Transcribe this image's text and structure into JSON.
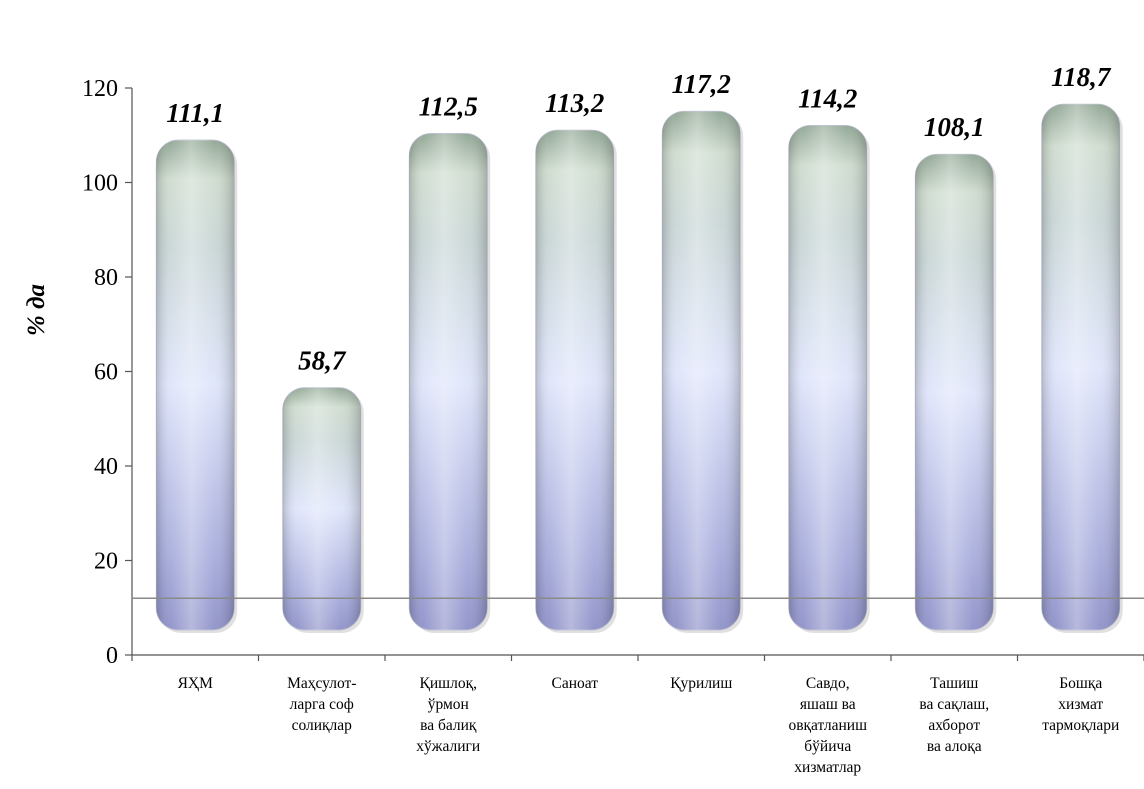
{
  "chart_data": {
    "type": "bar",
    "ylabel": "% да",
    "ylim": [
      0,
      120
    ],
    "yticks": [
      0,
      20,
      40,
      60,
      80,
      100,
      120
    ],
    "grid": false,
    "reference_line": 12,
    "categories": [
      [
        "ЯҲМ"
      ],
      [
        "Маҳсулот-",
        "ларга соф",
        "солиқлар"
      ],
      [
        "Қишлоқ,",
        "ўрмон",
        "ва балиқ",
        "хўжалиги"
      ],
      [
        "Саноат"
      ],
      [
        "Қурилиш"
      ],
      [
        "Савдо,",
        "яшаш ва",
        "овқатланиш",
        "бўйича",
        "хизматлар"
      ],
      [
        "Ташиш",
        "ва сақлаш,",
        "ахборот",
        "ва алоқа"
      ],
      [
        "Бошқа",
        "хизмат",
        "тармоқлари"
      ]
    ],
    "values": [
      111.1,
      58.7,
      112.5,
      113.2,
      117.2,
      114.2,
      108.1,
      118.7
    ],
    "value_labels": [
      "111,1",
      "58,7",
      "112,5",
      "113,2",
      "117,2",
      "114,2",
      "108,1",
      "118,7"
    ],
    "colors": {
      "bar_top": "#a9c0a9",
      "bar_mid": "#dde4fb",
      "bar_bottom": "#8f93cc",
      "axis": "#555555"
    }
  }
}
